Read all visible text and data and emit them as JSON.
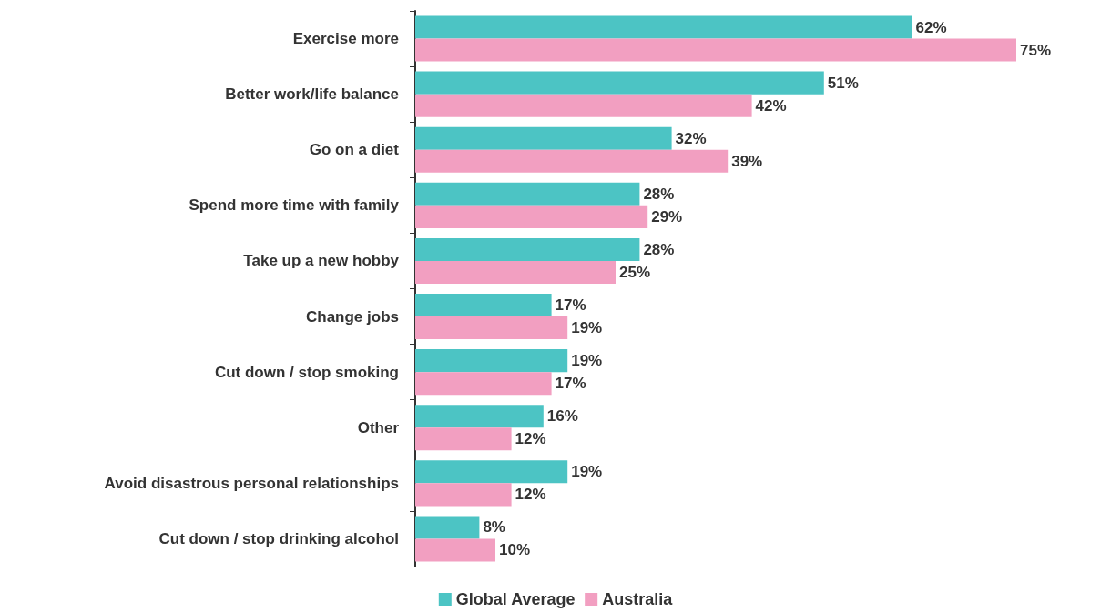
{
  "chart_data": {
    "type": "bar",
    "orientation": "horizontal",
    "legend": "bottom",
    "categories": [
      "Exercise more",
      "Better work/life balance",
      "Go on a diet",
      "Spend more time with family",
      "Take up a new hobby",
      "Change jobs",
      "Cut down / stop smoking",
      "Other",
      "Avoid disastrous personal relationships",
      "Cut down / stop drinking alcohol"
    ],
    "series": [
      {
        "name": "Global Average",
        "color": "#4cc4c4",
        "values": [
          62,
          51,
          32,
          28,
          28,
          17,
          19,
          16,
          19,
          8
        ],
        "value_labels": [
          "62%",
          "51%",
          "32%",
          "28%",
          "28%",
          "17%",
          "19%",
          "16%",
          "19%",
          "8%"
        ]
      },
      {
        "name": "Australia",
        "color": "#f29fc1",
        "values": [
          75,
          42,
          39,
          29,
          25,
          19,
          17,
          12,
          12,
          10
        ],
        "value_labels": [
          "75%",
          "42%",
          "39%",
          "29%",
          "25%",
          "19%",
          "17%",
          "12%",
          "12%",
          "10%"
        ]
      }
    ]
  }
}
